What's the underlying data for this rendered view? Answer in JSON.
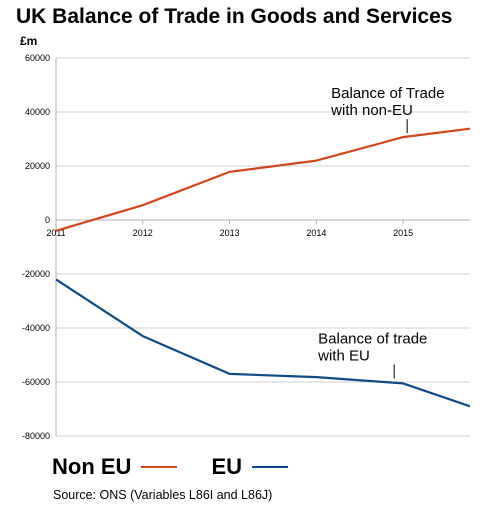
{
  "title": "UK Balance of Trade in Goods and Services",
  "unit_label": "£m",
  "source": "Source:  ONS (Variables L86I and L86J)",
  "colors": {
    "non_eu": "#d2461a",
    "eu": "#0d4a86",
    "grid": "#d0d0d0",
    "axis": "#b0b0b0"
  },
  "chart_data": {
    "type": "line",
    "title": "UK Balance of Trade in Goods and Services",
    "ylabel": "£m",
    "xlabel": "",
    "ylim": [
      -80000,
      60000
    ],
    "xlim": [
      2011,
      2015.77
    ],
    "yticks": [
      60000,
      40000,
      20000,
      0,
      -20000,
      -40000,
      -60000,
      -80000
    ],
    "xticks": [
      2011,
      2012,
      2013,
      2014,
      2015
    ],
    "grid": true,
    "legend_position": "bottom",
    "series": [
      {
        "name": "Non EU",
        "color": "#d2461a",
        "x": [
          2011,
          2012,
          2013,
          2014,
          2015,
          2015.77
        ],
        "y": [
          -4000,
          5500,
          17800,
          22000,
          30700,
          33800
        ]
      },
      {
        "name": "EU",
        "color": "#0d4a86",
        "x": [
          2011,
          2012,
          2013,
          2014,
          2015,
          2015.77
        ],
        "y": [
          -22000,
          -43000,
          -57000,
          -58200,
          -60500,
          -69000
        ]
      }
    ],
    "annotations": [
      {
        "lines": [
          "Balance of Trade",
          "with non-EU"
        ],
        "x": 2015,
        "y": 30700
      },
      {
        "lines": [
          "Balance of trade",
          "with EU"
        ],
        "x": 2014.85,
        "y": -60200
      }
    ]
  }
}
